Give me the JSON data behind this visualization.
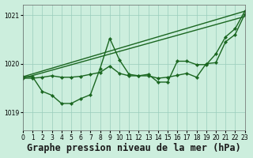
{
  "title": "Graphe pression niveau de la mer (hPa)",
  "bg_color": "#cceedd",
  "grid_color": "#99ccbb",
  "line_color": "#1a6620",
  "xlim": [
    0,
    23
  ],
  "ylim": [
    1018.62,
    1021.22
  ],
  "yticks": [
    1019,
    1020,
    1021
  ],
  "xticks": [
    0,
    1,
    2,
    3,
    4,
    5,
    6,
    7,
    8,
    9,
    10,
    11,
    12,
    13,
    14,
    15,
    16,
    17,
    18,
    19,
    20,
    21,
    22,
    23
  ],
  "series": [
    {
      "x": [
        0,
        23
      ],
      "y": [
        1019.73,
        1021.08
      ],
      "marker": false
    },
    {
      "x": [
        0,
        23
      ],
      "y": [
        1019.7,
        1020.97
      ],
      "marker": false
    },
    {
      "x": [
        0,
        1,
        2,
        3,
        4,
        5,
        6,
        7,
        8,
        9,
        10,
        11,
        12,
        13,
        14,
        15,
        16,
        17,
        18,
        19,
        20,
        21,
        22,
        23
      ],
      "y": [
        1019.73,
        1019.73,
        1019.43,
        1019.35,
        1019.18,
        1019.18,
        1019.28,
        1019.36,
        1019.9,
        1020.52,
        1020.08,
        1019.78,
        1019.75,
        1019.78,
        1019.62,
        1019.62,
        1020.05,
        1020.05,
        1019.98,
        1019.98,
        1020.2,
        1020.55,
        1020.72,
        1021.08
      ],
      "marker": true
    },
    {
      "x": [
        0,
        1,
        2,
        3,
        4,
        5,
        6,
        7,
        8,
        9,
        10,
        11,
        12,
        13,
        14,
        15,
        16,
        17,
        18,
        19,
        20,
        21,
        22,
        23
      ],
      "y": [
        1019.7,
        1019.7,
        1019.72,
        1019.75,
        1019.72,
        1019.72,
        1019.74,
        1019.78,
        1019.82,
        1019.95,
        1019.8,
        1019.75,
        1019.75,
        1019.75,
        1019.7,
        1019.72,
        1019.76,
        1019.8,
        1019.72,
        1020.0,
        1020.02,
        1020.45,
        1020.6,
        1021.02
      ],
      "marker": true
    }
  ],
  "linewidth": 1.0,
  "marker_size": 2.2,
  "marker_style": "D",
  "tick_fontsize": 5.5,
  "title_fontsize": 8.5
}
